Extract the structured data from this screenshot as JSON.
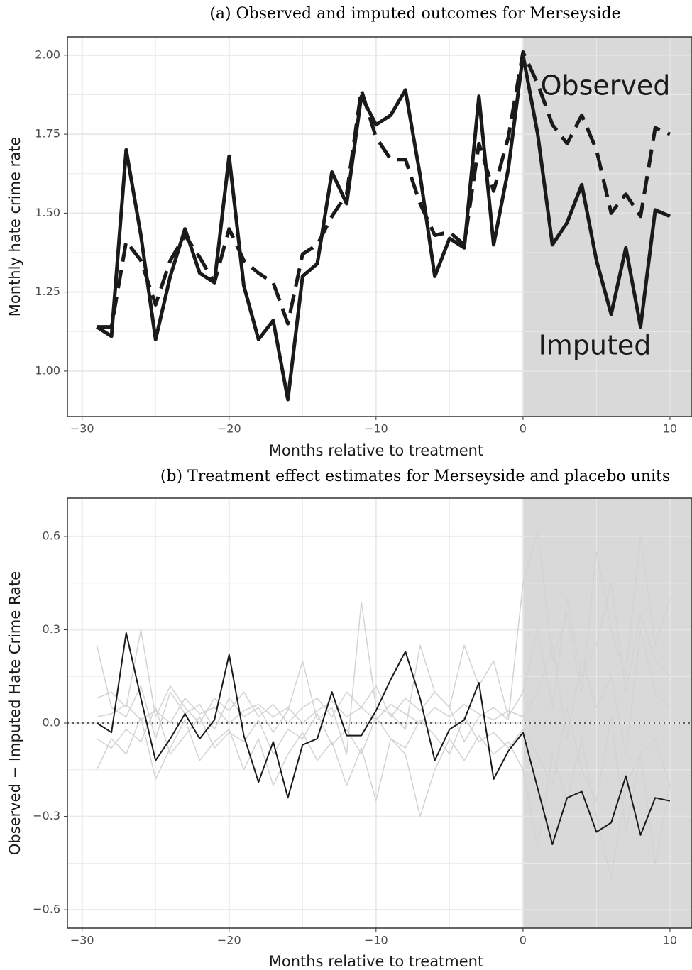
{
  "chart_data": [
    {
      "type": "line",
      "title": "(a) Observed and imputed outcomes for Merseyside",
      "x_label": "Months relative to treatment",
      "y_label": "Monthly hate crime rate",
      "x": [
        -29,
        -28,
        -27,
        -26,
        -25,
        -24,
        -23,
        -22,
        -21,
        -20,
        -19,
        -18,
        -17,
        -16,
        -15,
        -14,
        -13,
        -12,
        -11,
        -10,
        -9,
        -8,
        -7,
        -6,
        -5,
        -4,
        -3,
        -2,
        -1,
        0,
        1,
        2,
        3,
        4,
        5,
        6,
        7,
        8,
        9,
        10
      ],
      "series": [
        {
          "name": "Observed",
          "color": "#1a1a1a",
          "linestyle": "solid",
          "values": [
            1.14,
            1.11,
            1.7,
            1.43,
            1.1,
            1.3,
            1.45,
            1.31,
            1.28,
            1.68,
            1.27,
            1.1,
            1.16,
            0.91,
            1.3,
            1.34,
            1.63,
            1.53,
            1.87,
            1.78,
            1.81,
            1.89,
            1.62,
            1.3,
            1.42,
            1.39,
            1.87,
            1.4,
            1.64,
            2.0,
            1.75,
            1.4,
            1.47,
            1.59,
            1.35,
            1.18,
            1.39,
            1.14,
            1.51,
            1.49
          ]
        },
        {
          "name": "Imputed",
          "color": "#1a1a1a",
          "linestyle": "dashed",
          "values": [
            1.14,
            1.14,
            1.41,
            1.35,
            1.21,
            1.35,
            1.43,
            1.36,
            1.28,
            1.45,
            1.35,
            1.31,
            1.28,
            1.15,
            1.37,
            1.4,
            1.49,
            1.56,
            1.89,
            1.74,
            1.67,
            1.67,
            1.53,
            1.43,
            1.44,
            1.4,
            1.72,
            1.57,
            1.74,
            2.01,
            1.91,
            1.78,
            1.72,
            1.81,
            1.7,
            1.5,
            1.56,
            1.49,
            1.77,
            1.75
          ]
        }
      ],
      "xlim": [
        -31,
        11.5
      ],
      "ylim": [
        0.856,
        2.058
      ],
      "xticks": [
        {
          "value": -30,
          "label": "−30"
        },
        {
          "value": -20,
          "label": "−20"
        },
        {
          "value": -10,
          "label": "−10"
        },
        0,
        10
      ],
      "yticks": [
        {
          "value": 1.0,
          "label": "1.00"
        },
        {
          "value": 1.25,
          "label": "1.25"
        },
        {
          "value": 1.5,
          "label": "1.50"
        },
        {
          "value": 1.75,
          "label": "1.75"
        },
        {
          "value": 2.0,
          "label": "2.00"
        }
      ],
      "shade_from": 0,
      "grid": true
    },
    {
      "type": "line",
      "title": "(b) Treatment effect estimates for Merseyside and placebo units",
      "x_label": "Months relative to treatment",
      "y_label": "Observed − Imputed Hate Crime Rate",
      "x": [
        -29,
        -28,
        -27,
        -26,
        -25,
        -24,
        -23,
        -22,
        -21,
        -20,
        -19,
        -18,
        -17,
        -16,
        -15,
        -14,
        -13,
        -12,
        -11,
        -10,
        -9,
        -8,
        -7,
        -6,
        -5,
        -4,
        -3,
        -2,
        -1,
        0,
        1,
        2,
        3,
        4,
        5,
        6,
        7,
        8,
        9,
        10
      ],
      "series": [
        {
          "color": "#d3d3d3",
          "values": [
            0.25,
            0.05,
            0.02,
            0.12,
            -0.05,
            0.1,
            0.03,
            0.06,
            -0.02,
            0.08,
            0.02,
            0.05,
            -0.03,
            0.04,
            0.2,
            0.01,
            0.05,
            -0.1,
            0.39,
            0.05,
            0.03,
            -0.02,
            0.25,
            0.1,
            0.05,
            -0.06,
            0.02,
            0.05,
            0.01,
            0.45,
            0.62,
            0.2,
            0.35,
            0.1,
            0.55,
            0.3,
            0.15,
            0.6,
            0.25,
            0.4
          ]
        },
        {
          "color": "#d3d3d3",
          "values": [
            -0.15,
            -0.05,
            -0.1,
            0.02,
            -0.18,
            -0.08,
            0.01,
            -0.12,
            -0.06,
            -0.02,
            -0.15,
            -0.05,
            -0.2,
            -0.1,
            -0.03,
            -0.12,
            -0.06,
            -0.2,
            -0.08,
            -0.25,
            -0.05,
            -0.1,
            -0.3,
            -0.15,
            -0.05,
            -0.12,
            -0.04,
            -0.1,
            -0.06,
            -0.15,
            -0.4,
            -0.1,
            -0.25,
            -0.05,
            -0.3,
            -0.5,
            -0.2,
            -0.1,
            -0.45,
            -0.2
          ]
        },
        {
          "color": "#d3d3d3",
          "values": [
            0.08,
            0.1,
            0.05,
            0.3,
            0.02,
            0.12,
            0.05,
            0.0,
            0.08,
            0.04,
            0.1,
            0.02,
            0.06,
            0.0,
            0.05,
            0.08,
            0.02,
            0.1,
            0.05,
            0.12,
            0.02,
            0.08,
            0.04,
            0.1,
            0.05,
            0.25,
            0.12,
            0.2,
            0.02,
            0.1,
            0.3,
            0.05,
            0.4,
            0.15,
            0.25,
            0.45,
            0.1,
            0.35,
            0.2,
            0.15
          ]
        },
        {
          "color": "#d3d3d3",
          "values": [
            -0.05,
            -0.08,
            -0.02,
            -0.06,
            0.05,
            -0.1,
            -0.04,
            0.02,
            -0.08,
            -0.03,
            -0.06,
            0.01,
            -0.1,
            -0.02,
            -0.05,
            0.03,
            -0.07,
            -0.02,
            -0.1,
            0.02,
            -0.05,
            -0.08,
            0.01,
            -0.04,
            -0.1,
            0.02,
            -0.06,
            -0.03,
            -0.08,
            -0.02,
            -0.1,
            -0.2,
            0.05,
            -0.15,
            -0.25,
            0.02,
            -0.35,
            -0.1,
            -0.05,
            -0.2
          ]
        },
        {
          "color": "#d3d3d3",
          "values": [
            0.02,
            0.03,
            0.06,
            0.01,
            0.04,
            0.0,
            0.08,
            0.03,
            0.05,
            0.0,
            0.04,
            0.06,
            0.02,
            0.05,
            0.0,
            0.04,
            0.07,
            0.02,
            0.05,
            0.01,
            0.06,
            0.03,
            0.0,
            0.05,
            0.02,
            0.06,
            0.03,
            0.01,
            0.04,
            0.02,
            0.1,
            0.25,
            -0.05,
            0.2,
            0.05,
            0.15,
            -0.1,
            0.3,
            0.1,
            0.05
          ]
        },
        {
          "color": "#1a1a1a",
          "values": [
            0.0,
            -0.03,
            0.29,
            0.08,
            -0.12,
            -0.05,
            0.03,
            -0.05,
            0.01,
            0.22,
            -0.04,
            -0.19,
            -0.06,
            -0.24,
            -0.07,
            -0.05,
            0.1,
            -0.04,
            -0.04,
            0.04,
            0.14,
            0.23,
            0.08,
            -0.12,
            -0.02,
            0.01,
            0.13,
            -0.18,
            -0.09,
            -0.03,
            -0.21,
            -0.39,
            -0.24,
            -0.22,
            -0.35,
            -0.32,
            -0.17,
            -0.36,
            -0.24,
            -0.25
          ]
        }
      ],
      "xlim": [
        -31,
        11.5
      ],
      "ylim": [
        -0.659,
        0.723
      ],
      "xticks": [
        {
          "value": -30,
          "label": "−30"
        },
        {
          "value": -20,
          "label": "−20"
        },
        {
          "value": -10,
          "label": "−10"
        },
        0,
        10
      ],
      "yticks": [
        {
          "value": -0.6,
          "label": "−0.6"
        },
        {
          "value": -0.3,
          "label": "−0.3"
        },
        {
          "value": 0,
          "label": "0.0"
        },
        0.3,
        0.6
      ],
      "shade_from": 0,
      "hline": 0,
      "grid": true
    }
  ]
}
